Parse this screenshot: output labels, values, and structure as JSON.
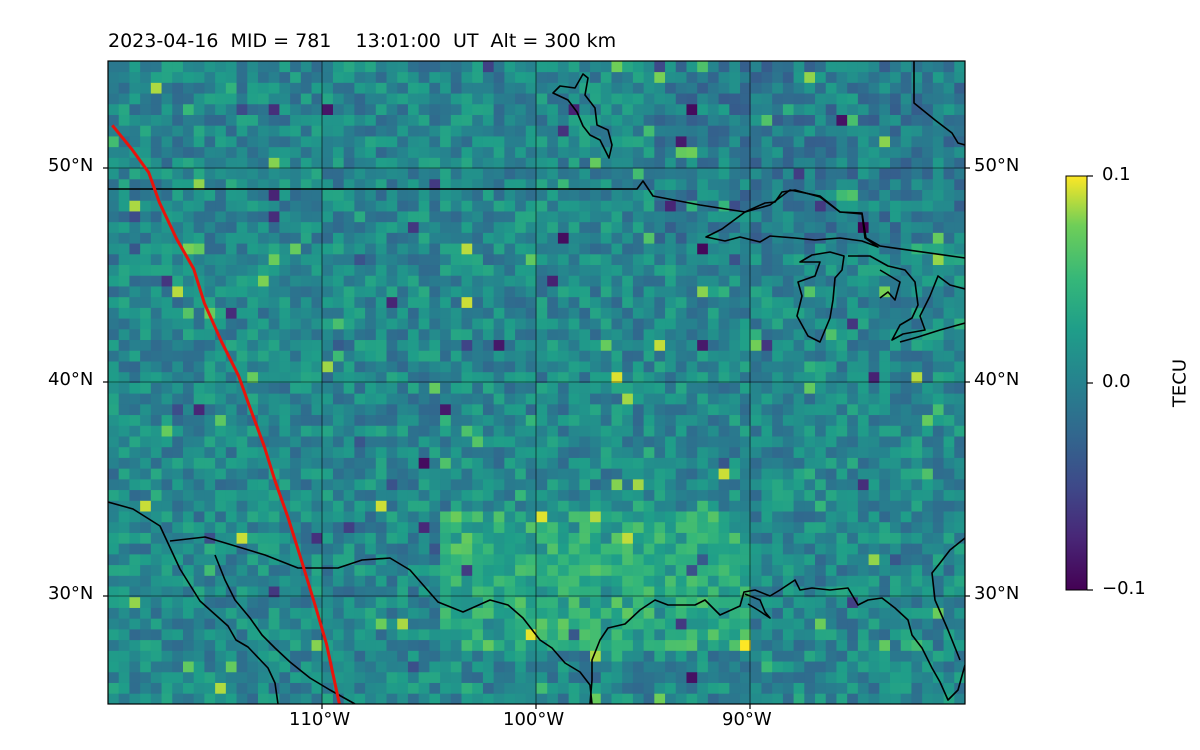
{
  "header": {
    "title": "2023-04-16  MID = 781    13:01:00  UT  Alt = 300 km"
  },
  "axes": {
    "lat_ticks": [
      "50°N",
      "40°N",
      "30°N"
    ],
    "lon_ticks": [
      "110°W",
      "100°W",
      "90°W"
    ]
  },
  "colorbar": {
    "label": "TECU",
    "ticks": [
      "0.1",
      "0.0",
      "−0.1"
    ],
    "range": [
      -0.1,
      0.1
    ],
    "colormap": "viridis"
  },
  "chart_data": {
    "type": "heatmap",
    "title": "2023-04-16  MID = 781    13:01:00  UT  Alt = 300 km",
    "lon_range_deg_e": [
      -120,
      -80
    ],
    "lat_range_deg_n": [
      25,
      55
    ],
    "value_range": [
      -0.1,
      0.1
    ],
    "colormap": "viridis",
    "grid": true,
    "track_color": "#e8140c",
    "track_points": [
      [
        -119.8,
        52.0
      ],
      [
        -118.9,
        50.9
      ],
      [
        -118.1,
        49.8
      ],
      [
        -117.6,
        48.4
      ],
      [
        -116.8,
        46.7
      ],
      [
        -116.0,
        45.3
      ],
      [
        -115.5,
        43.7
      ],
      [
        -114.7,
        41.9
      ],
      [
        -113.9,
        40.3
      ],
      [
        -113.4,
        38.9
      ],
      [
        -112.7,
        37.0
      ],
      [
        -112.2,
        35.4
      ],
      [
        -111.6,
        33.7
      ],
      [
        -111.0,
        31.8
      ],
      [
        -110.3,
        29.5
      ],
      [
        -109.8,
        27.8
      ],
      [
        -109.2,
        25.0
      ]
    ]
  }
}
